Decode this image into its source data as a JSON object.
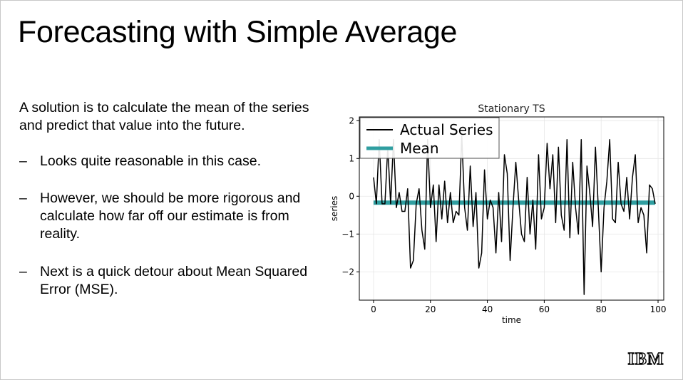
{
  "slide": {
    "title": "Forecasting with Simple Average",
    "intro": "A solution is to calculate the mean of the series and predict that value into the future.",
    "bullets": [
      {
        "dash": "–",
        "text": "Looks quite reasonable in this case."
      },
      {
        "dash": "–",
        "text": "However, we should be more rigorous and calculate how far off our estimate is from reality."
      },
      {
        "dash": "–",
        "text": "Next is a quick detour about Mean Squared Error (MSE)."
      }
    ],
    "logo_text": "IBM",
    "logo_icon": "ibm-logo"
  },
  "chart_data": {
    "type": "line",
    "title": "Stationary TS",
    "xlabel": "time",
    "ylabel": "series",
    "xlim": [
      -5,
      102
    ],
    "ylim": [
      -2.75,
      2.1
    ],
    "xticks": [
      0,
      20,
      40,
      60,
      80,
      100
    ],
    "yticks": [
      -2,
      -1,
      0,
      1,
      2
    ],
    "ytick_labels": [
      "−2",
      "−1",
      "0",
      "1",
      "2"
    ],
    "grid": true,
    "legend": "top-left",
    "series": [
      {
        "name": "Actual Series",
        "color": "#000000",
        "x": [
          0,
          1,
          2,
          3,
          4,
          5,
          6,
          7,
          8,
          9,
          10,
          11,
          12,
          13,
          14,
          15,
          16,
          17,
          18,
          19,
          20,
          21,
          22,
          23,
          24,
          25,
          26,
          27,
          28,
          29,
          30,
          31,
          32,
          33,
          34,
          35,
          36,
          37,
          38,
          39,
          40,
          41,
          42,
          43,
          44,
          45,
          46,
          47,
          48,
          49,
          50,
          51,
          52,
          53,
          54,
          55,
          56,
          57,
          58,
          59,
          60,
          61,
          62,
          63,
          64,
          65,
          66,
          67,
          68,
          69,
          70,
          71,
          72,
          73,
          74,
          75,
          76,
          77,
          78,
          79,
          80,
          81,
          82,
          83,
          84,
          85,
          86,
          87,
          88,
          89,
          90,
          91,
          92,
          93,
          94,
          95,
          96,
          97,
          98,
          99
        ],
        "y": [
          0.5,
          -0.2,
          1.5,
          -0.2,
          -0.2,
          1.3,
          -0.2,
          1.5,
          -0.3,
          0.1,
          -0.4,
          -0.4,
          0.2,
          -1.9,
          -1.7,
          -0.2,
          0.2,
          -0.9,
          -1.4,
          1.5,
          -0.3,
          0.3,
          -1.2,
          0.3,
          -0.6,
          0.4,
          -0.7,
          0.1,
          -0.7,
          -0.4,
          -0.5,
          1.6,
          -0.3,
          -0.9,
          0.8,
          -0.8,
          0.1,
          -1.9,
          -1.5,
          0.7,
          -0.6,
          -0.1,
          -0.3,
          -1.5,
          0.1,
          -1.2,
          1.1,
          0.6,
          -1.7,
          -0.3,
          0.9,
          -0.1,
          -1.0,
          -1.2,
          0.5,
          -1.0,
          -0.1,
          -1.4,
          1.1,
          -0.6,
          -0.3,
          1.4,
          0.2,
          1.1,
          -0.7,
          1.3,
          -0.5,
          -0.9,
          1.5,
          -1.1,
          0.9,
          -0.3,
          -1.0,
          1.5,
          -2.6,
          0.8,
          0.1,
          -0.8,
          1.3,
          -0.3,
          -2.0,
          -0.3,
          0.4,
          1.5,
          -0.6,
          -0.7,
          0.9,
          -0.2,
          -0.4,
          0.5,
          -0.6,
          0.5,
          1.1,
          -0.7,
          -0.3,
          -0.5,
          -1.5,
          0.3,
          0.2,
          -0.2
        ]
      },
      {
        "name": "Mean",
        "color": "#2f9ea0",
        "x": [
          0,
          99
        ],
        "y": [
          -0.17,
          -0.17
        ]
      }
    ]
  }
}
